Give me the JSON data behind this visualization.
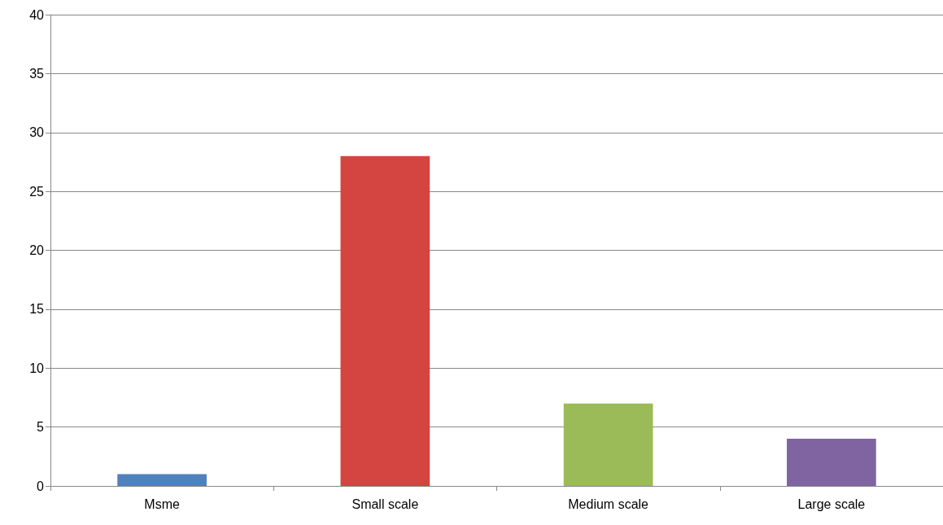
{
  "chart_data": {
    "type": "bar",
    "categories": [
      "Msme",
      "Small scale",
      "Medium scale",
      "Large scale"
    ],
    "values": [
      1,
      28,
      7,
      4
    ],
    "colors": [
      "#4f81bd",
      "#d44440",
      "#9bbb59",
      "#8064a2"
    ],
    "ylim": [
      0,
      40
    ],
    "yticks": [
      0,
      5,
      10,
      15,
      20,
      25,
      30,
      35,
      40
    ],
    "grid": "y"
  }
}
